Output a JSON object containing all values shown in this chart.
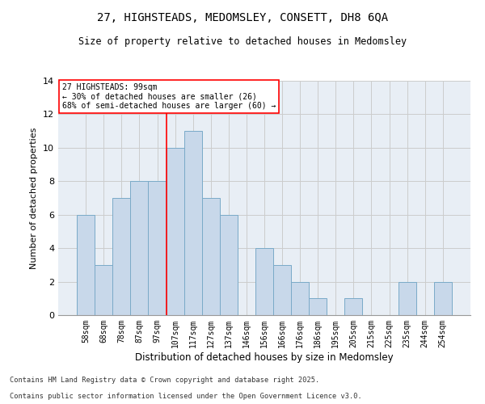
{
  "title_line1": "27, HIGHSTEADS, MEDOMSLEY, CONSETT, DH8 6QA",
  "title_line2": "Size of property relative to detached houses in Medomsley",
  "xlabel": "Distribution of detached houses by size in Medomsley",
  "ylabel": "Number of detached properties",
  "categories": [
    "58sqm",
    "68sqm",
    "78sqm",
    "87sqm",
    "97sqm",
    "107sqm",
    "117sqm",
    "127sqm",
    "137sqm",
    "146sqm",
    "156sqm",
    "166sqm",
    "176sqm",
    "186sqm",
    "195sqm",
    "205sqm",
    "215sqm",
    "225sqm",
    "235sqm",
    "244sqm",
    "254sqm"
  ],
  "values": [
    6,
    3,
    7,
    8,
    8,
    10,
    11,
    7,
    6,
    0,
    4,
    3,
    2,
    1,
    0,
    1,
    0,
    0,
    2,
    0,
    2
  ],
  "bar_color": "#c8d8ea",
  "bar_edge_color": "#7aaac8",
  "red_line_x": 4.5,
  "annotation_line1": "27 HIGHSTEADS: 99sqm",
  "annotation_line2": "← 30% of detached houses are smaller (26)",
  "annotation_line3": "68% of semi-detached houses are larger (60) →",
  "ylim": [
    0,
    14
  ],
  "yticks": [
    0,
    2,
    4,
    6,
    8,
    10,
    12,
    14
  ],
  "grid_color": "#cccccc",
  "background_color": "#e8eef5",
  "footnote1": "Contains HM Land Registry data © Crown copyright and database right 2025.",
  "footnote2": "Contains public sector information licensed under the Open Government Licence v3.0."
}
